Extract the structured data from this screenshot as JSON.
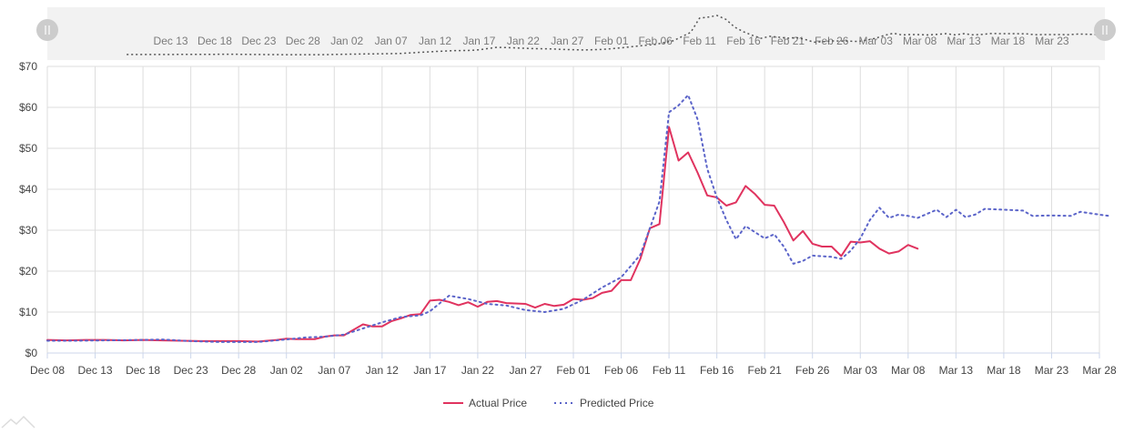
{
  "chart_data": {
    "type": "line",
    "ylabel_prefix": "$",
    "ylim": [
      0,
      70
    ],
    "yticks": [
      "$0",
      "$10",
      "$20",
      "$30",
      "$40",
      "$50",
      "$60",
      "$70"
    ],
    "xticks": [
      "Dec 08",
      "Dec 13",
      "Dec 18",
      "Dec 23",
      "Dec 28",
      "Jan 02",
      "Jan 07",
      "Jan 12",
      "Jan 17",
      "Jan 22",
      "Jan 27",
      "Feb 01",
      "Feb 06",
      "Feb 11",
      "Feb 16",
      "Feb 21",
      "Feb 26",
      "Mar 03",
      "Mar 08",
      "Mar 13",
      "Mar 18",
      "Mar 23",
      "Mar 28"
    ],
    "navigator_ticks": [
      "Dec 13",
      "Dec 18",
      "Dec 23",
      "Dec 28",
      "Jan 02",
      "Jan 07",
      "Jan 12",
      "Jan 17",
      "Jan 22",
      "Jan 27",
      "Feb 01",
      "Feb 06",
      "Feb 11",
      "Feb 16",
      "Feb 21",
      "Feb 26",
      "Mar 03",
      "Mar 08",
      "Mar 13",
      "Mar 18",
      "Mar 23"
    ],
    "x_start": "Dec 08",
    "x_end": "Mar 28",
    "grid": true,
    "legend_position": "bottom-center",
    "series": [
      {
        "name": "Actual Price",
        "color": "#e0335f",
        "style": "solid",
        "points": [
          [
            "2020-12-08",
            3.2
          ],
          [
            "2020-12-10",
            3.1
          ],
          [
            "2020-12-12",
            3.2
          ],
          [
            "2020-12-14",
            3.2
          ],
          [
            "2020-12-16",
            3.1
          ],
          [
            "2020-12-18",
            3.2
          ],
          [
            "2020-12-20",
            3.1
          ],
          [
            "2020-12-22",
            3.0
          ],
          [
            "2020-12-24",
            2.9
          ],
          [
            "2020-12-26",
            2.9
          ],
          [
            "2020-12-28",
            2.9
          ],
          [
            "2020-12-30",
            2.8
          ],
          [
            "2021-01-01",
            3.2
          ],
          [
            "2021-01-02",
            3.5
          ],
          [
            "2021-01-03",
            3.4
          ],
          [
            "2021-01-05",
            3.4
          ],
          [
            "2021-01-06",
            4.0
          ],
          [
            "2021-01-07",
            4.3
          ],
          [
            "2021-01-08",
            4.3
          ],
          [
            "2021-01-10",
            7.0
          ],
          [
            "2021-01-11",
            6.5
          ],
          [
            "2021-01-12",
            6.5
          ],
          [
            "2021-01-13",
            7.8
          ],
          [
            "2021-01-14",
            8.5
          ],
          [
            "2021-01-15",
            9.3
          ],
          [
            "2021-01-16",
            9.5
          ],
          [
            "2021-01-17",
            12.8
          ],
          [
            "2021-01-18",
            13.0
          ],
          [
            "2021-01-19",
            12.5
          ],
          [
            "2021-01-20",
            11.7
          ],
          [
            "2021-01-21",
            12.4
          ],
          [
            "2021-01-22",
            11.3
          ],
          [
            "2021-01-23",
            12.5
          ],
          [
            "2021-01-24",
            12.7
          ],
          [
            "2021-01-25",
            12.2
          ],
          [
            "2021-01-27",
            12.0
          ],
          [
            "2021-01-28",
            11.1
          ],
          [
            "2021-01-29",
            12.0
          ],
          [
            "2021-01-30",
            11.5
          ],
          [
            "2021-01-31",
            11.8
          ],
          [
            "2021-02-01",
            13.2
          ],
          [
            "2021-02-02",
            13.0
          ],
          [
            "2021-02-03",
            13.4
          ],
          [
            "2021-02-04",
            14.7
          ],
          [
            "2021-02-05",
            15.2
          ],
          [
            "2021-02-06",
            17.8
          ],
          [
            "2021-02-07",
            17.8
          ],
          [
            "2021-02-08",
            23.0
          ],
          [
            "2021-02-09",
            30.5
          ],
          [
            "2021-02-10",
            31.5
          ],
          [
            "2021-02-11",
            55.2
          ],
          [
            "2021-02-12",
            47.0
          ],
          [
            "2021-02-13",
            49.0
          ],
          [
            "2021-02-14",
            44.0
          ],
          [
            "2021-02-15",
            38.5
          ],
          [
            "2021-02-16",
            38.0
          ],
          [
            "2021-02-17",
            36.0
          ],
          [
            "2021-02-18",
            36.8
          ],
          [
            "2021-02-19",
            40.8
          ],
          [
            "2021-02-20",
            38.8
          ],
          [
            "2021-02-21",
            36.2
          ],
          [
            "2021-02-22",
            36.0
          ],
          [
            "2021-02-23",
            32.0
          ],
          [
            "2021-02-24",
            27.5
          ],
          [
            "2021-02-25",
            29.8
          ],
          [
            "2021-02-26",
            26.7
          ],
          [
            "2021-02-27",
            26.0
          ],
          [
            "2021-02-28",
            26.0
          ],
          [
            "2021-03-01",
            23.7
          ],
          [
            "2021-03-02",
            27.2
          ],
          [
            "2021-03-03",
            27.0
          ],
          [
            "2021-03-04",
            27.3
          ],
          [
            "2021-03-05",
            25.5
          ],
          [
            "2021-03-06",
            24.3
          ],
          [
            "2021-03-07",
            24.8
          ],
          [
            "2021-03-08",
            26.4
          ],
          [
            "2021-03-09",
            25.5
          ]
        ]
      },
      {
        "name": "Predicted Price",
        "color": "#5b64c9",
        "style": "dotted",
        "points": [
          [
            "2020-12-08",
            3.0
          ],
          [
            "2020-12-11",
            3.0
          ],
          [
            "2020-12-14",
            3.1
          ],
          [
            "2020-12-18",
            3.2
          ],
          [
            "2020-12-20",
            3.3
          ],
          [
            "2020-12-23",
            2.9
          ],
          [
            "2020-12-26",
            2.7
          ],
          [
            "2020-12-30",
            2.7
          ],
          [
            "2021-01-02",
            3.3
          ],
          [
            "2021-01-04",
            3.8
          ],
          [
            "2021-01-06",
            4.0
          ],
          [
            "2021-01-08",
            4.5
          ],
          [
            "2021-01-10",
            6.0
          ],
          [
            "2021-01-12",
            7.5
          ],
          [
            "2021-01-14",
            8.8
          ],
          [
            "2021-01-16",
            9.2
          ],
          [
            "2021-01-17",
            10.2
          ],
          [
            "2021-01-19",
            14.0
          ],
          [
            "2021-01-21",
            13.2
          ],
          [
            "2021-01-23",
            12.0
          ],
          [
            "2021-01-25",
            11.6
          ],
          [
            "2021-01-27",
            10.5
          ],
          [
            "2021-01-29",
            10.0
          ],
          [
            "2021-01-31",
            10.8
          ],
          [
            "2021-02-02",
            13.0
          ],
          [
            "2021-02-04",
            16.0
          ],
          [
            "2021-02-06",
            18.5
          ],
          [
            "2021-02-08",
            24.0
          ],
          [
            "2021-02-10",
            37.0
          ],
          [
            "2021-02-11",
            58.8
          ],
          [
            "2021-02-12",
            60.5
          ],
          [
            "2021-02-13",
            63.0
          ],
          [
            "2021-02-14",
            57.0
          ],
          [
            "2021-02-15",
            45.0
          ],
          [
            "2021-02-16",
            38.0
          ],
          [
            "2021-02-17",
            32.5
          ],
          [
            "2021-02-18",
            27.8
          ],
          [
            "2021-02-19",
            31.0
          ],
          [
            "2021-02-20",
            29.5
          ],
          [
            "2021-02-21",
            28.0
          ],
          [
            "2021-02-22",
            29.0
          ],
          [
            "2021-02-23",
            26.0
          ],
          [
            "2021-02-24",
            21.8
          ],
          [
            "2021-02-25",
            22.5
          ],
          [
            "2021-02-26",
            23.8
          ],
          [
            "2021-02-28",
            23.5
          ],
          [
            "2021-03-01",
            23.0
          ],
          [
            "2021-03-02",
            25.0
          ],
          [
            "2021-03-03",
            28.0
          ],
          [
            "2021-03-04",
            32.5
          ],
          [
            "2021-03-05",
            35.5
          ],
          [
            "2021-03-06",
            33.0
          ],
          [
            "2021-03-07",
            33.8
          ],
          [
            "2021-03-08",
            33.5
          ],
          [
            "2021-03-09",
            33.0
          ],
          [
            "2021-03-11",
            35.0
          ],
          [
            "2021-03-12",
            33.2
          ],
          [
            "2021-03-13",
            35.0
          ],
          [
            "2021-03-14",
            33.2
          ],
          [
            "2021-03-15",
            33.8
          ],
          [
            "2021-03-16",
            35.2
          ],
          [
            "2021-03-18",
            35.0
          ],
          [
            "2021-03-20",
            34.8
          ],
          [
            "2021-03-21",
            33.5
          ],
          [
            "2021-03-23",
            33.6
          ],
          [
            "2021-03-25",
            33.5
          ],
          [
            "2021-03-26",
            34.5
          ],
          [
            "2021-03-28",
            33.8
          ],
          [
            "2021-03-29",
            33.5
          ]
        ]
      }
    ]
  },
  "colors": {
    "grid": "#dddddd",
    "axis": "#ccd6eb",
    "navigator_bg": "#f2f2f2",
    "handle": "#cccccc"
  }
}
